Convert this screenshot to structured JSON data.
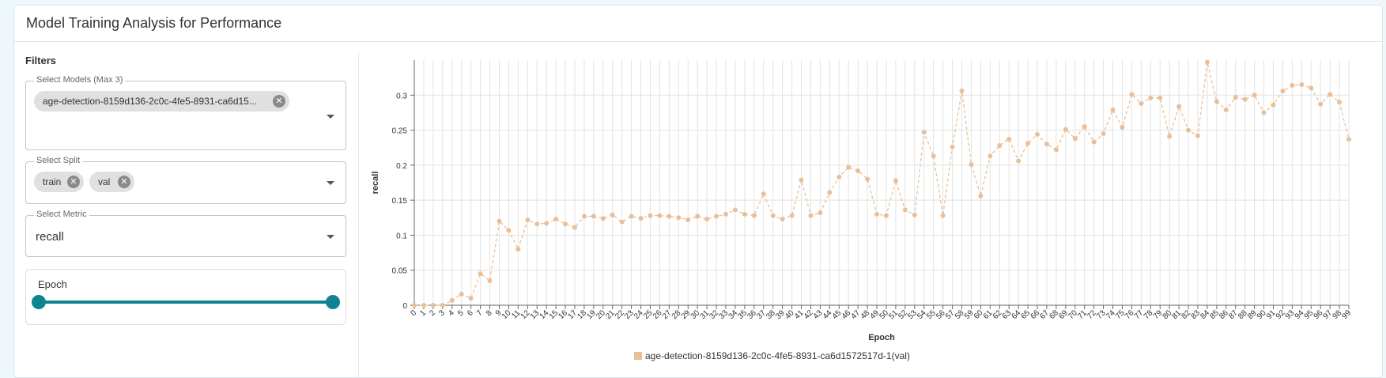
{
  "header": {
    "title": "Model Training Analysis for Performance"
  },
  "filters": {
    "title": "Filters",
    "models": {
      "label": "Select Models (Max 3)",
      "chips": [
        "age-detection-8159d136-2c0c-4fe5-8931-ca6d15..."
      ]
    },
    "split": {
      "label": "Select Split",
      "chips": [
        "train",
        "val"
      ]
    },
    "metric": {
      "label": "Select Metric",
      "value": "recall"
    },
    "epoch": {
      "label": "Epoch"
    }
  },
  "chart_data": {
    "type": "line",
    "xlabel": "Epoch",
    "ylabel": "recall",
    "x": [
      0,
      1,
      2,
      3,
      4,
      5,
      6,
      7,
      8,
      9,
      10,
      11,
      12,
      13,
      14,
      15,
      16,
      17,
      18,
      19,
      20,
      21,
      22,
      23,
      24,
      25,
      26,
      27,
      28,
      29,
      30,
      31,
      32,
      33,
      34,
      35,
      36,
      37,
      38,
      39,
      40,
      41,
      42,
      43,
      44,
      45,
      46,
      47,
      48,
      49,
      50,
      51,
      52,
      53,
      54,
      55,
      56,
      57,
      58,
      59,
      60,
      61,
      62,
      63,
      64,
      65,
      66,
      67,
      68,
      69,
      70,
      71,
      72,
      73,
      74,
      75,
      76,
      77,
      78,
      79,
      80,
      81,
      82,
      83,
      84,
      85,
      86,
      87,
      88,
      89,
      90,
      91,
      92,
      93,
      94,
      95,
      96,
      97,
      98,
      99
    ],
    "xlim": [
      0,
      99
    ],
    "ylim": [
      0,
      0.35
    ],
    "yticks": [
      0,
      0.05,
      0.1,
      0.15,
      0.2,
      0.25,
      0.3
    ],
    "grid": true,
    "series": [
      {
        "name": "age-detection-8159d136-2c0c-4fe5-8931-ca6d1572517d-1(val)",
        "color": "#e9bf98",
        "values": [
          0,
          0,
          0,
          0,
          0.007,
          0.016,
          0.01,
          0.045,
          0.035,
          0.12,
          0.107,
          0.08,
          0.122,
          0.116,
          0.117,
          0.123,
          0.116,
          0.111,
          0.127,
          0.127,
          0.124,
          0.129,
          0.119,
          0.127,
          0.124,
          0.128,
          0.128,
          0.127,
          0.125,
          0.122,
          0.127,
          0.123,
          0.127,
          0.13,
          0.136,
          0.13,
          0.128,
          0.159,
          0.128,
          0.123,
          0.128,
          0.179,
          0.128,
          0.132,
          0.161,
          0.183,
          0.197,
          0.192,
          0.18,
          0.13,
          0.128,
          0.178,
          0.136,
          0.129,
          0.247,
          0.213,
          0.128,
          0.226,
          0.306,
          0.201,
          0.156,
          0.213,
          0.228,
          0.237,
          0.206,
          0.231,
          0.244,
          0.23,
          0.222,
          0.251,
          0.238,
          0.255,
          0.233,
          0.245,
          0.279,
          0.254,
          0.301,
          0.288,
          0.296,
          0.296,
          0.241,
          0.284,
          0.25,
          0.242,
          0.347,
          0.291,
          0.279,
          0.297,
          0.294,
          0.3,
          0.275,
          0.286,
          0.306,
          0.314,
          0.315,
          0.31,
          0.287,
          0.301,
          0.29,
          0.237
        ]
      }
    ]
  }
}
